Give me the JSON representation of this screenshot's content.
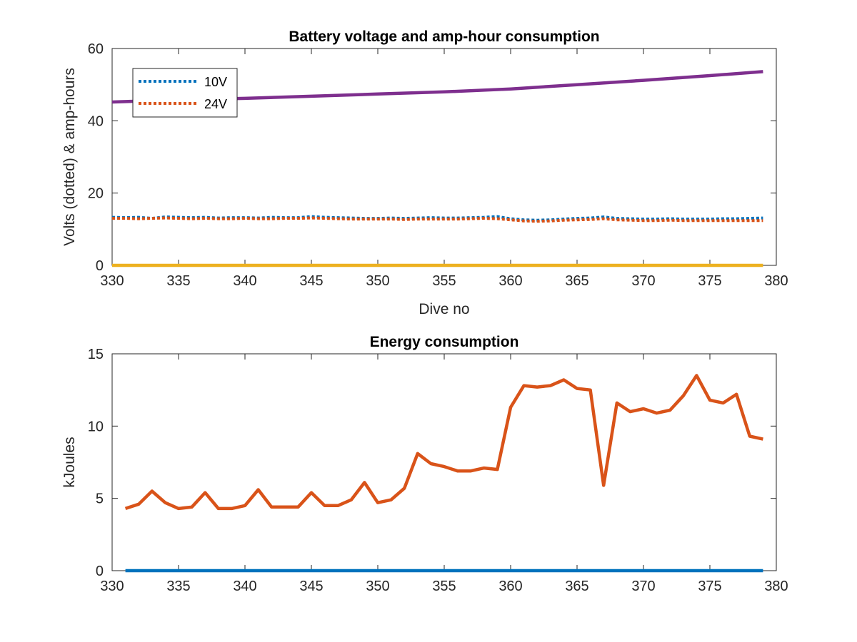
{
  "chart_data": [
    {
      "type": "line",
      "title": "Battery voltage and amp-hour consumption",
      "xlabel": "Dive no",
      "ylabel": "Volts (dotted) & amp-hours",
      "xlim": [
        330,
        380
      ],
      "ylim": [
        0,
        60
      ],
      "xticks": [
        330,
        335,
        340,
        345,
        350,
        355,
        360,
        365,
        370,
        375,
        380
      ],
      "yticks": [
        0,
        20,
        40,
        60
      ],
      "grid": false,
      "legend": {
        "placement": "top-left",
        "entries": [
          "10V",
          "24V"
        ]
      },
      "series": [
        {
          "name": "10V",
          "color": "#0072BD",
          "style": "dotted",
          "x": [
            330,
            331,
            332,
            333,
            334,
            335,
            336,
            337,
            338,
            339,
            340,
            341,
            342,
            343,
            344,
            345,
            346,
            347,
            348,
            349,
            350,
            351,
            352,
            353,
            354,
            355,
            356,
            357,
            358,
            359,
            360,
            361,
            362,
            363,
            364,
            365,
            366,
            367,
            368,
            369,
            370,
            371,
            372,
            373,
            374,
            375,
            376,
            377,
            378,
            379
          ],
          "y": [
            13.3,
            13.2,
            13.3,
            13.0,
            13.4,
            13.3,
            13.2,
            13.3,
            13.1,
            13.2,
            13.2,
            13.1,
            13.3,
            13.2,
            13.2,
            13.5,
            13.3,
            13.2,
            13.1,
            13.0,
            13.0,
            13.1,
            13.0,
            13.1,
            13.2,
            13.1,
            13.1,
            13.2,
            13.3,
            13.5,
            12.9,
            12.6,
            12.5,
            12.6,
            12.8,
            13.0,
            13.1,
            13.4,
            13.0,
            12.9,
            12.8,
            12.8,
            12.9,
            12.8,
            12.8,
            12.8,
            12.9,
            12.9,
            13.0,
            13.1
          ]
        },
        {
          "name": "24V",
          "color": "#D95319",
          "style": "dotted",
          "x": [
            330,
            331,
            332,
            333,
            334,
            335,
            336,
            337,
            338,
            339,
            340,
            341,
            342,
            343,
            344,
            345,
            346,
            347,
            348,
            349,
            350,
            351,
            352,
            353,
            354,
            355,
            356,
            357,
            358,
            359,
            360,
            361,
            362,
            363,
            364,
            365,
            366,
            367,
            368,
            369,
            370,
            371,
            372,
            373,
            374,
            375,
            376,
            377,
            378,
            379
          ],
          "y": [
            13.0,
            13.0,
            12.9,
            13.0,
            13.1,
            13.0,
            12.9,
            13.0,
            12.9,
            12.9,
            13.0,
            12.9,
            12.9,
            13.0,
            13.0,
            13.1,
            13.0,
            12.9,
            12.8,
            12.8,
            12.8,
            12.8,
            12.7,
            12.8,
            12.8,
            12.8,
            12.8,
            12.9,
            13.0,
            12.9,
            12.6,
            12.3,
            12.2,
            12.3,
            12.5,
            12.6,
            12.7,
            12.9,
            12.6,
            12.5,
            12.4,
            12.4,
            12.5,
            12.4,
            12.4,
            12.4,
            12.4,
            12.4,
            12.4,
            12.4
          ]
        },
        {
          "name": "",
          "color": "#7E2F8E",
          "style": "solid",
          "x": [
            330,
            335,
            340,
            345,
            350,
            355,
            360,
            365,
            370,
            375,
            379
          ],
          "y": [
            45.2,
            45.8,
            46.2,
            46.8,
            47.4,
            48.0,
            48.8,
            50.0,
            51.2,
            52.5,
            53.6
          ]
        },
        {
          "name": "",
          "color": "#EDB120",
          "style": "solid",
          "x": [
            330,
            379
          ],
          "y": [
            0,
            0
          ]
        }
      ]
    },
    {
      "type": "line",
      "title": "Energy consumption",
      "xlabel": "",
      "ylabel": "kJoules",
      "xlim": [
        330,
        380
      ],
      "ylim": [
        0,
        15
      ],
      "xticks": [
        330,
        335,
        340,
        345,
        350,
        355,
        360,
        365,
        370,
        375,
        380
      ],
      "yticks": [
        0,
        5,
        10,
        15
      ],
      "grid": false,
      "series": [
        {
          "name": "",
          "color": "#D95319",
          "style": "solid",
          "x": [
            331,
            332,
            333,
            334,
            335,
            336,
            337,
            338,
            339,
            340,
            341,
            342,
            343,
            344,
            345,
            346,
            347,
            348,
            349,
            350,
            351,
            352,
            353,
            354,
            355,
            356,
            357,
            358,
            359,
            360,
            361,
            362,
            363,
            364,
            365,
            366,
            367,
            368,
            369,
            370,
            371,
            372,
            373,
            374,
            375,
            376,
            377,
            378,
            379
          ],
          "y": [
            4.3,
            4.6,
            5.5,
            4.7,
            4.3,
            4.4,
            5.4,
            4.3,
            4.3,
            4.5,
            5.6,
            4.4,
            4.4,
            4.4,
            5.4,
            4.5,
            4.5,
            4.9,
            6.1,
            4.7,
            4.9,
            5.7,
            8.1,
            7.4,
            7.2,
            6.9,
            6.9,
            7.1,
            7.0,
            11.3,
            12.8,
            12.7,
            12.8,
            13.2,
            12.6,
            12.5,
            5.9,
            11.6,
            11.0,
            11.2,
            10.9,
            11.1,
            12.1,
            13.5,
            11.8,
            11.6,
            12.2,
            9.3,
            9.1
          ]
        },
        {
          "name": "",
          "color": "#0072BD",
          "style": "solid",
          "x": [
            331,
            379
          ],
          "y": [
            0,
            0
          ]
        }
      ]
    }
  ]
}
